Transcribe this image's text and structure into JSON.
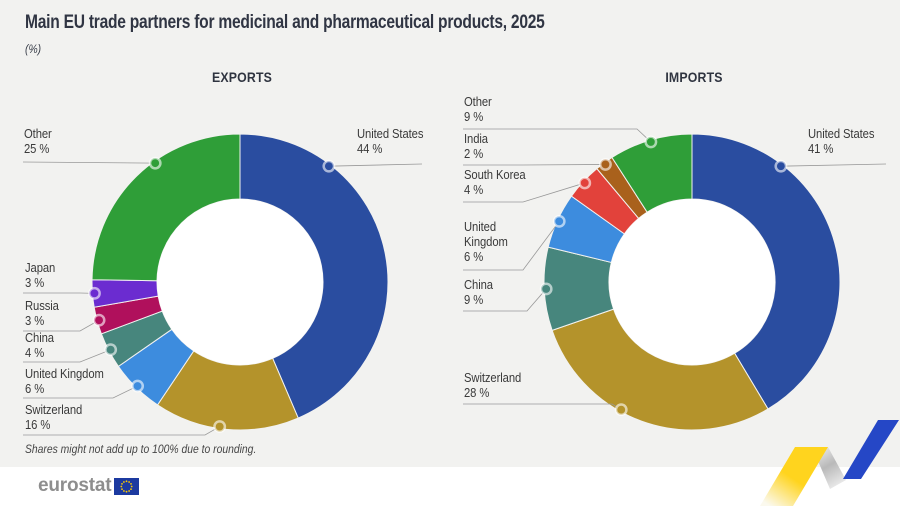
{
  "header": {
    "title": "Main EU trade partners for medicinal and pharmaceutical products, 2025",
    "subtitle": "(%)"
  },
  "footnote": "Shares might not add up to 100% due to rounding.",
  "logo": {
    "text": "eurostat"
  },
  "decor": {
    "yellow": "#FFD41E",
    "gray": "#b9b9b9",
    "blue": "#2547C6",
    "flag_blue": "#1c3aa0",
    "flag_stars": "#ffcc00"
  },
  "chart_data": [
    {
      "type": "pie",
      "variant": "donut",
      "title": "EXPORTS",
      "unit": "%",
      "start_angle": "12 o'clock, clockwise",
      "slices": [
        {
          "label": "United States",
          "value": 44,
          "color": "#2A4DA0"
        },
        {
          "label": "Switzerland",
          "value": 16,
          "color": "#B4932B"
        },
        {
          "label": "United Kingdom",
          "value": 6,
          "color": "#3D8CDE"
        },
        {
          "label": "China",
          "value": 4,
          "color": "#47867D"
        },
        {
          "label": "Russia",
          "value": 3,
          "color": "#B0105C"
        },
        {
          "label": "Japan",
          "value": 3,
          "color": "#6B2CD0"
        },
        {
          "label": "Other",
          "value": 25,
          "color": "#2F9E38"
        }
      ]
    },
    {
      "type": "pie",
      "variant": "donut",
      "title": "IMPORTS",
      "unit": "%",
      "start_angle": "12 o'clock, clockwise",
      "slices": [
        {
          "label": "United States",
          "value": 41,
          "color": "#2A4DA0"
        },
        {
          "label": "Switzerland",
          "value": 28,
          "color": "#B4932B"
        },
        {
          "label": "China",
          "value": 9,
          "color": "#47867D"
        },
        {
          "label": "United Kingdom",
          "value": 6,
          "color": "#3D8CDE"
        },
        {
          "label": "South Korea",
          "value": 4,
          "color": "#E2423B"
        },
        {
          "label": "India",
          "value": 2,
          "color": "#A9611C"
        },
        {
          "label": "Other",
          "value": 9,
          "color": "#2F9E38"
        }
      ]
    }
  ]
}
